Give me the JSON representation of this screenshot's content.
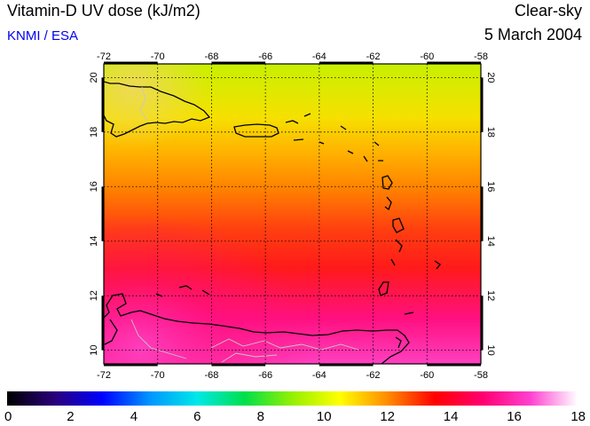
{
  "header": {
    "title": "Vitamin-D UV dose (kJ/m2)",
    "credit": "KNMI / ESA",
    "sky_condition": "Clear-sky",
    "date": "5 March 2004"
  },
  "map": {
    "region": "Caribbean",
    "lon_range": [
      -72,
      -58
    ],
    "lat_range": [
      9.5,
      20.5
    ],
    "lon_ticks": [
      "-72",
      "-70",
      "-68",
      "-66",
      "-64",
      "-62",
      "-60",
      "-58"
    ],
    "lat_ticks": [
      "10",
      "12",
      "14",
      "16",
      "18",
      "20"
    ],
    "field_colors": [
      "#c8f000",
      "#f6e000",
      "#ffb000",
      "#ff8000",
      "#ff4010",
      "#ff1a1a",
      "#ff1080",
      "#ff40c0"
    ],
    "coastline_color": "#000000",
    "border_color": "#c0c0c0"
  },
  "colorbar": {
    "min": 0,
    "max": 18,
    "tick_labels": [
      "0",
      "2",
      "4",
      "6",
      "8",
      "10",
      "12",
      "14",
      "16",
      "18"
    ],
    "colors": [
      "#000000",
      "#2a007a",
      "#0000ff",
      "#0096ff",
      "#00e8e8",
      "#00e04a",
      "#96f000",
      "#ffff00",
      "#ff8c00",
      "#ff0000",
      "#ff0070",
      "#ff40d0",
      "#ffffff"
    ]
  }
}
